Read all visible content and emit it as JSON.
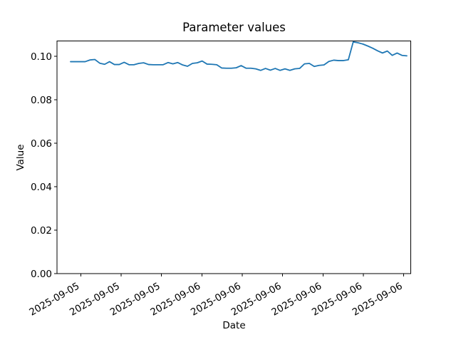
{
  "figure": {
    "background_color": "#ffffff",
    "text_color": "#000000"
  },
  "chart_data": {
    "type": "line",
    "title": "Parameter values",
    "xlabel": "Date",
    "ylabel": "Value",
    "grid": false,
    "legend": "none",
    "line_color": "#1f77b4",
    "ylim": [
      0,
      0.107
    ],
    "y_tick_labels": [
      "0.00",
      "0.02",
      "0.04",
      "0.06",
      "0.08",
      "0.10"
    ],
    "y_tick_values": [
      0.0,
      0.02,
      0.04,
      0.06,
      0.08,
      0.1
    ],
    "x_tick_labels": [
      "2025-09-05",
      "2025-09-05",
      "2025-09-05",
      "2025-09-06",
      "2025-09-06",
      "2025-09-06",
      "2025-09-06",
      "2025-09-06",
      "2025-09-06"
    ],
    "values": [
      0.0975,
      0.0975,
      0.0975,
      0.0975,
      0.0983,
      0.0985,
      0.0968,
      0.0963,
      0.0975,
      0.0962,
      0.0962,
      0.0972,
      0.0961,
      0.0961,
      0.0967,
      0.097,
      0.0962,
      0.0961,
      0.0961,
      0.0961,
      0.0971,
      0.0965,
      0.0971,
      0.096,
      0.0954,
      0.0967,
      0.097,
      0.0978,
      0.0964,
      0.0963,
      0.0961,
      0.0946,
      0.0945,
      0.0945,
      0.0947,
      0.0957,
      0.0945,
      0.0945,
      0.0942,
      0.0935,
      0.0944,
      0.0936,
      0.0944,
      0.0935,
      0.0942,
      0.0935,
      0.0942,
      0.0944,
      0.0965,
      0.0967,
      0.0953,
      0.0958,
      0.096,
      0.0976,
      0.0982,
      0.098,
      0.098,
      0.0984,
      0.1066,
      0.1062,
      0.1056,
      0.1047,
      0.1037,
      0.1025,
      0.1015,
      0.1024,
      0.1004,
      0.1015,
      0.1004,
      0.1002
    ]
  }
}
